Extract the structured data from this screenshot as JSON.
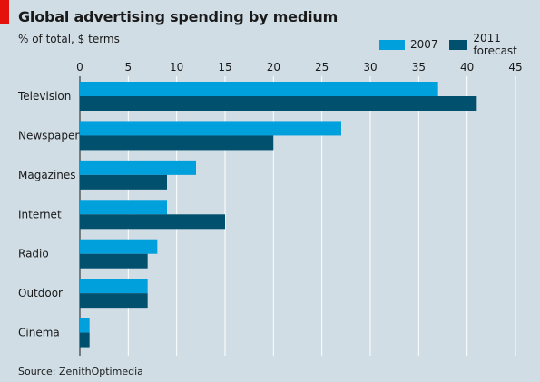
{
  "header": {
    "title": "Global advertising spending by medium",
    "subtitle": "% of total, $ terms"
  },
  "legend": [
    {
      "label": "2007",
      "color": "#00a0dc"
    },
    {
      "label": "2011 forecast",
      "color": "#00506e"
    }
  ],
  "footer": {
    "source": "Source: ZenithOptimedia"
  },
  "chart_data": {
    "type": "bar",
    "orientation": "horizontal",
    "title": "Global advertising spending by medium",
    "subtitle": "% of total, $ terms",
    "categories": [
      "Television",
      "Newspapers",
      "Magazines",
      "Internet",
      "Radio",
      "Outdoor",
      "Cinema"
    ],
    "series": [
      {
        "name": "2007",
        "color": "#00a0dc",
        "values": [
          37,
          27,
          12,
          9,
          8,
          7,
          1
        ]
      },
      {
        "name": "2011 forecast",
        "color": "#00506e",
        "values": [
          41,
          20,
          9,
          15,
          7,
          7,
          1
        ]
      }
    ],
    "xticks": [
      0,
      5,
      10,
      15,
      20,
      25,
      30,
      35,
      40,
      45
    ],
    "xlim": [
      0,
      45
    ],
    "axis_position": "top",
    "grid": true,
    "legend_position": "top-right"
  }
}
